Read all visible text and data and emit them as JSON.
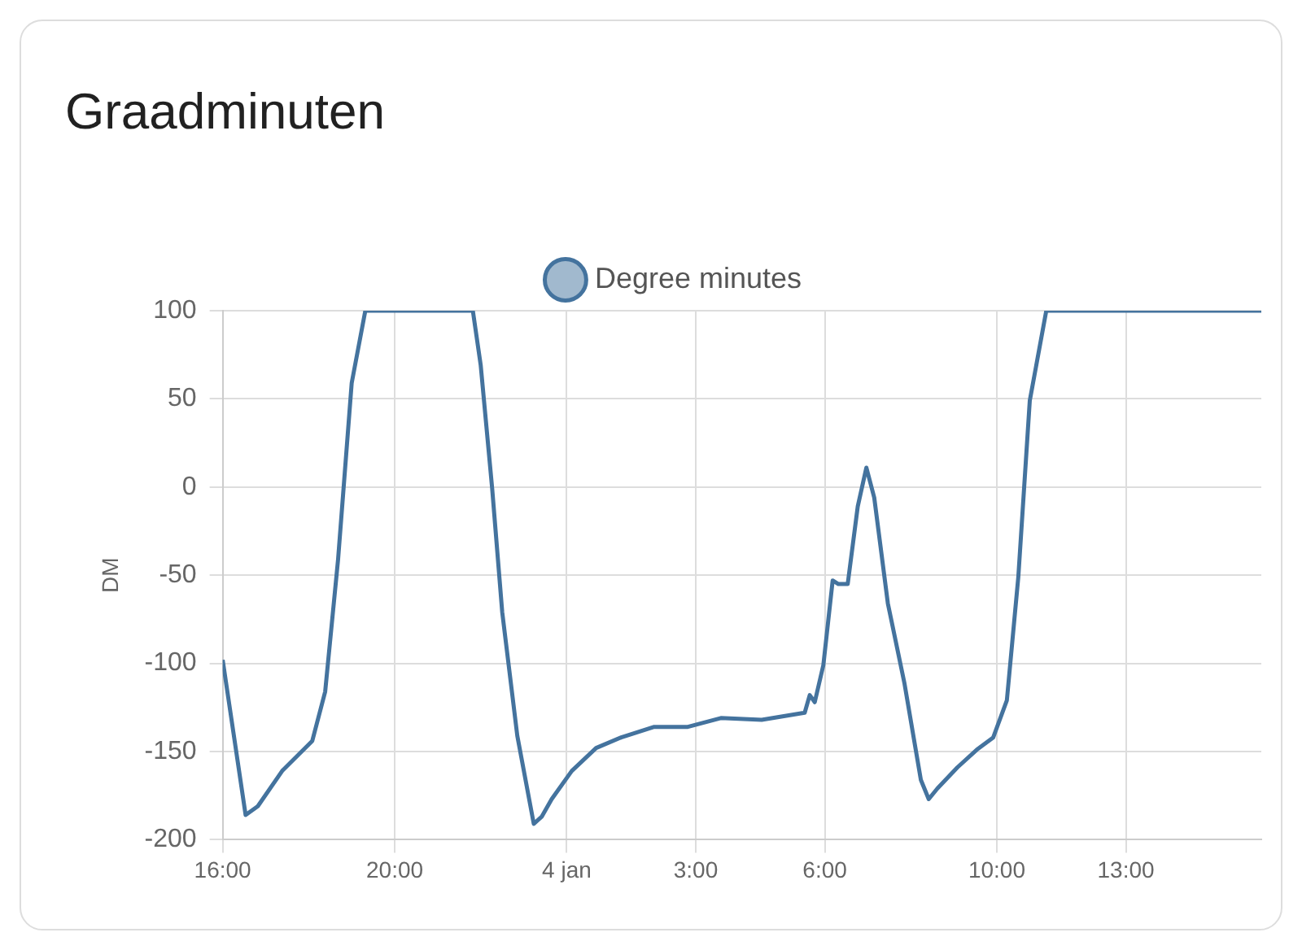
{
  "chart_data": {
    "type": "line",
    "title": "Graadminuten",
    "ylabel": "DM",
    "legend": "top",
    "grid": true,
    "marker": "none",
    "line_style": "solid",
    "x": [
      "--01-03T16:00",
      "--01-03T16:32",
      "--01-03T16:49",
      "--01-03T17:23",
      "--01-03T18:05",
      "--01-03T18:23",
      "--01-03T18:41",
      "--01-03T19:00",
      "--01-03T19:19",
      "--01-03T21:49",
      "--01-03T22:00",
      "--01-03T22:16",
      "--01-03T22:30",
      "--01-03T22:51",
      "--01-03T23:14",
      "--01-03T23:25",
      "--01-03T23:39",
      "--01-04T00:07",
      "--01-04T00:41",
      "--01-04T01:16",
      "--01-04T02:02",
      "--01-04T02:49",
      "--01-04T03:35",
      "--01-04T04:32",
      "--01-04T05:32",
      "--01-04T05:39",
      "--01-04T05:46",
      "--01-04T05:58",
      "--01-04T06:11",
      "--01-04T06:19",
      "--01-04T06:32",
      "--01-04T06:46",
      "--01-04T06:58",
      "--01-04T07:09",
      "--01-04T07:28",
      "--01-04T07:51",
      "--01-04T08:14",
      "--01-04T08:25",
      "--01-04T08:37",
      "--01-04T09:05",
      "--01-04T09:32",
      "--01-04T09:55",
      "--01-04T10:14",
      "--01-04T10:30",
      "--01-04T10:46",
      "--01-04T11:09",
      "--01-04T16:09"
    ],
    "series": [
      {
        "name": "Degree minutes",
        "color": "#44739e",
        "values": [
          -98,
          -186,
          -181,
          -161,
          -144,
          -116,
          -41,
          59,
          100,
          100,
          69,
          -1,
          -71,
          -141,
          -191,
          -187,
          -177,
          -161,
          -148,
          -142,
          -136,
          -136,
          -131,
          -132,
          -128,
          -118,
          -122,
          -101,
          -53,
          -55,
          -55,
          -11,
          11,
          -6,
          -66,
          -111,
          -166,
          -177,
          -171,
          -159,
          -149,
          -142,
          -121,
          -51,
          49,
          100,
          100
        ]
      }
    ],
    "xlim": [
      "--01-03T16:00",
      "--01-04T16:09"
    ],
    "xticks": [
      {
        "value": "--01-03T16:00",
        "label": "16:00"
      },
      {
        "value": "--01-03T20:00",
        "label": "20:00"
      },
      {
        "value": "--01-04T00:00",
        "label": "4 jan"
      },
      {
        "value": "--01-04T03:00",
        "label": "3:00"
      },
      {
        "value": "--01-04T06:00",
        "label": "6:00"
      },
      {
        "value": "--01-04T10:00",
        "label": "10:00"
      },
      {
        "value": "--01-04T13:00",
        "label": "13:00"
      }
    ],
    "ylim": [
      -200,
      100
    ],
    "yticks": [
      -200,
      -150,
      -100,
      -50,
      0,
      50,
      100
    ]
  }
}
